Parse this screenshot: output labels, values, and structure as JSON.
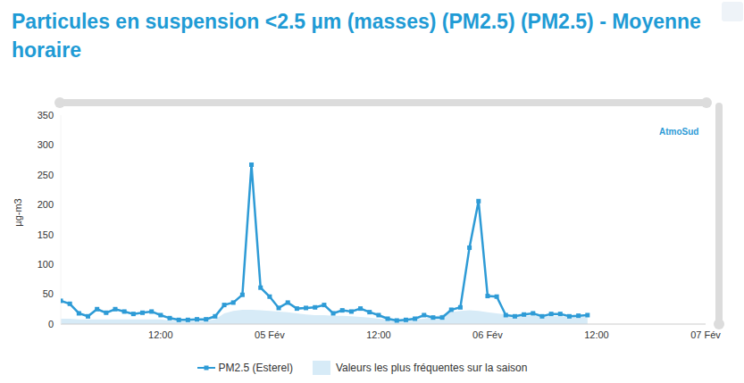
{
  "chart_data": {
    "type": "line",
    "title": "Particules en suspension <2.5 µm (masses) (PM2.5) (PM2.5) - Moyenne horaire",
    "y_label": "µg-m3",
    "logo": "AtmoSud",
    "x": [
      1,
      2,
      3,
      4,
      5,
      6,
      7,
      8,
      9,
      10,
      11,
      12,
      13,
      14,
      15,
      16,
      17,
      18,
      19,
      20,
      21,
      22,
      23,
      24,
      25,
      26,
      27,
      28,
      29,
      30,
      31,
      32,
      33,
      34,
      35,
      36,
      37,
      38,
      39,
      40,
      41,
      42,
      43,
      44,
      45,
      46,
      47,
      48,
      49,
      50,
      51,
      52,
      53,
      54,
      55,
      56,
      57,
      58,
      59
    ],
    "series": [
      {
        "name": "PM2.5 (Esterel)",
        "type": "line",
        "color": "#2e9bd6",
        "marker": "square",
        "values": [
          39,
          34,
          18,
          13,
          25,
          19,
          25,
          21,
          17,
          19,
          21,
          15,
          10,
          7,
          7,
          8,
          8,
          13,
          32,
          36,
          49,
          267,
          61,
          46,
          27,
          36,
          26,
          27,
          28,
          32,
          18,
          23,
          21,
          26,
          20,
          15,
          9,
          6,
          7,
          9,
          15,
          11,
          11,
          24,
          28,
          128,
          206,
          47,
          46,
          15,
          13,
          16,
          18,
          13,
          17,
          17,
          13,
          14,
          15
        ]
      },
      {
        "name": "Valeurs les plus fréquentes sur la saison",
        "type": "area",
        "color": "#d7ebf7",
        "values": [
          9,
          9,
          8,
          8,
          8,
          8,
          8,
          8,
          8,
          8,
          8,
          8,
          6,
          5,
          5,
          5,
          6,
          8,
          18,
          22,
          24,
          24,
          23,
          22,
          21,
          20,
          18,
          16,
          15,
          15,
          14,
          14,
          13,
          12,
          11,
          9,
          8,
          7,
          7,
          8,
          9,
          12,
          16,
          20,
          22,
          23,
          22,
          20,
          18,
          16,
          15,
          14,
          14,
          13,
          13,
          13,
          12,
          12,
          12
        ]
      }
    ],
    "xlim": [
      1,
      72
    ],
    "xticks": [
      {
        "value": 12,
        "label": "12:00"
      },
      {
        "value": 24,
        "label": "05 Fév"
      },
      {
        "value": 36,
        "label": "12:00"
      },
      {
        "value": 48,
        "label": "06 Fév"
      },
      {
        "value": 60,
        "label": "12:00"
      },
      {
        "value": 72,
        "label": "07 Fév"
      }
    ],
    "ylim": [
      0,
      350
    ],
    "yticks": [
      0,
      50,
      100,
      150,
      200,
      250,
      300,
      350
    ],
    "grid": false,
    "legend": "bottom"
  }
}
